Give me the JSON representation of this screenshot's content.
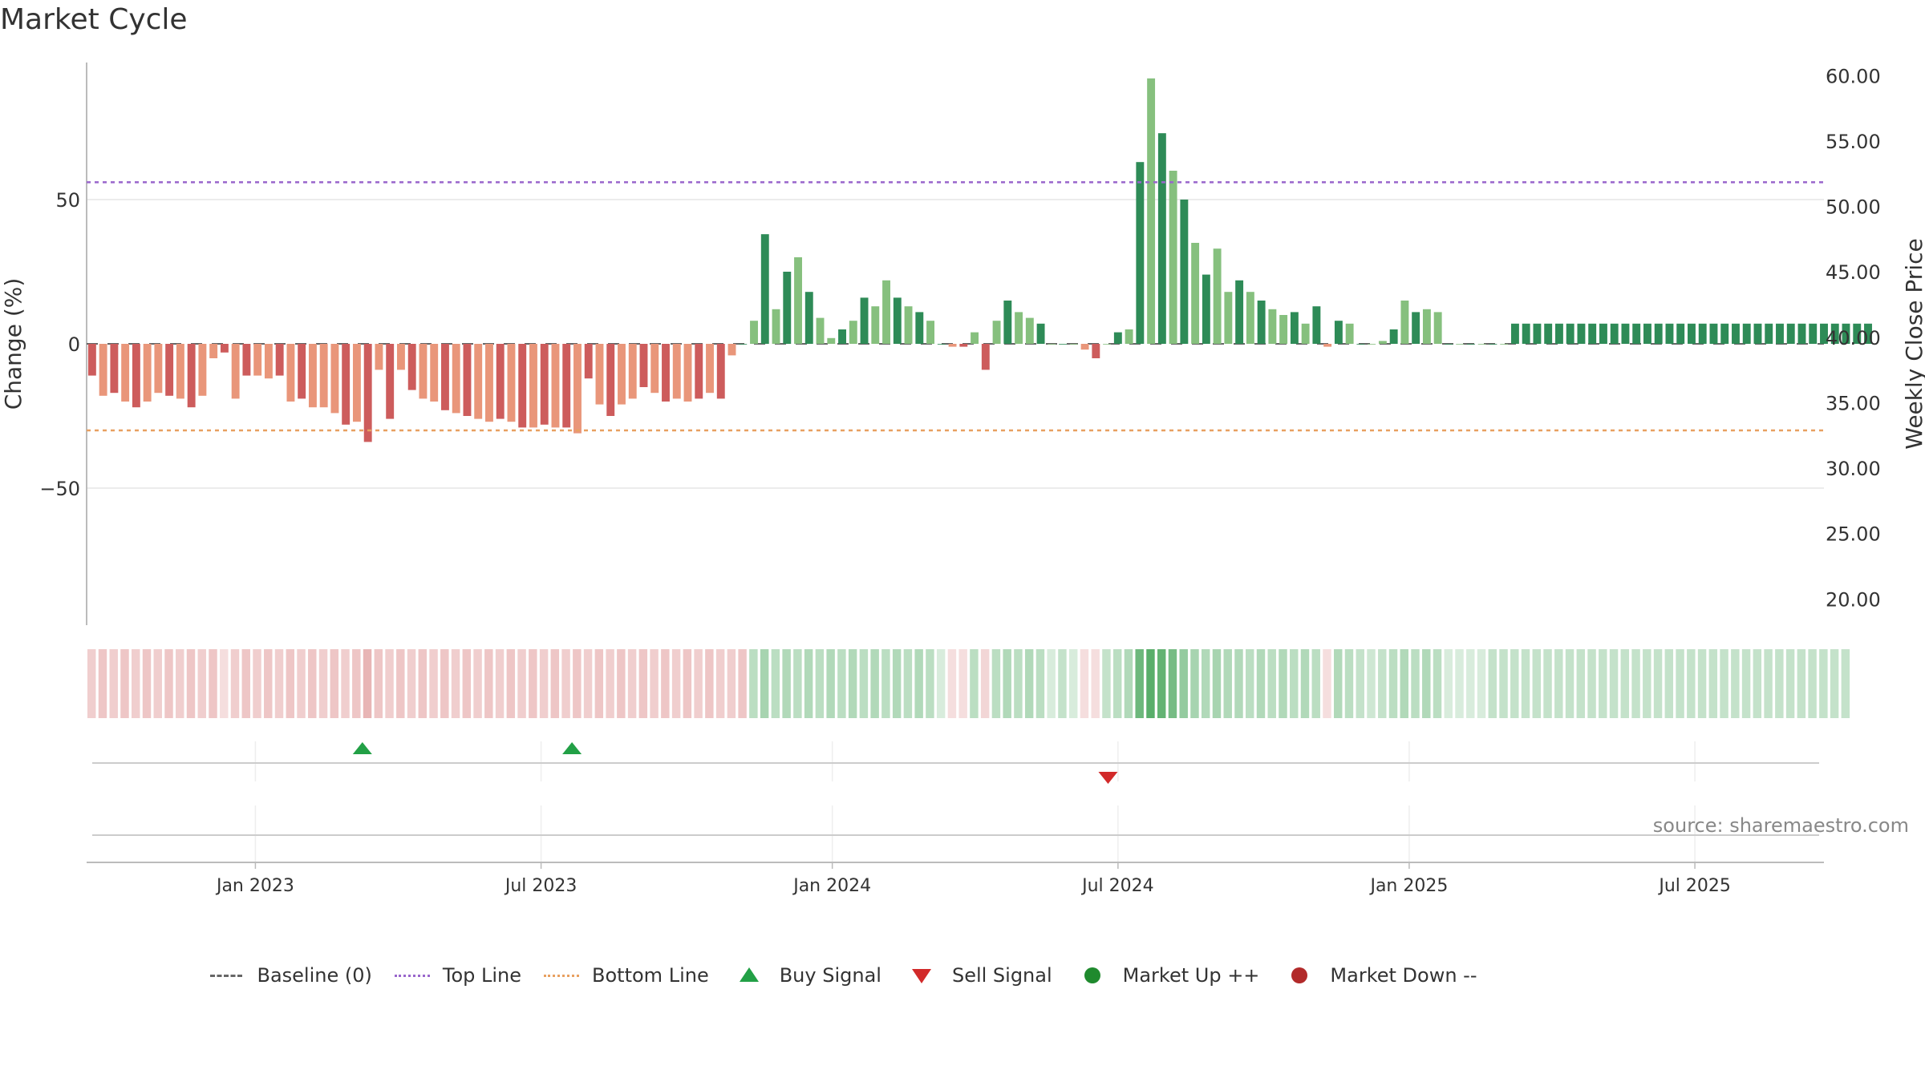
{
  "title": "Market Cycle",
  "source": "source: sharemaestro.com",
  "legend": {
    "baseline": "Baseline (0)",
    "top_line": "Top Line",
    "bottom_line": "Bottom Line",
    "buy_signal": "Buy Signal",
    "sell_signal": "Sell Signal",
    "market_up": "Market Up ++",
    "market_down": "Market Down --"
  },
  "colors": {
    "positive_dark": "#2e8b57",
    "positive_light": "#86c07e",
    "negative_dark": "#cd5c5c",
    "negative_light": "#e9967a",
    "top_line": "#9966cc",
    "bottom_line": "#e8a060",
    "buy": "#22a046",
    "sell": "#d22a2a"
  },
  "chart_data": {
    "type": "bar",
    "ylabel": "Change (%)",
    "y2label": "Weekly Close Price",
    "ylim": [
      -97.5,
      97.5
    ],
    "yticks": [
      {
        "v": 50,
        "label": "50"
      },
      {
        "v": 0,
        "label": "0"
      },
      {
        "v": -50,
        "label": "−50"
      }
    ],
    "y2lim": [
      18,
      61
    ],
    "y2ticks": [
      "60.00",
      "55.00",
      "50.00",
      "45.00",
      "40.00",
      "35.00",
      "30.00",
      "25.00",
      "20.00"
    ],
    "y2tick_values": [
      60,
      55,
      50,
      45,
      40,
      35,
      30,
      25,
      20
    ],
    "xlim_weeks": [
      0,
      157.5
    ],
    "xticks": [
      {
        "label": "Jan 2023",
        "week": 15.3
      },
      {
        "label": "Jul 2023",
        "week": 41.2
      },
      {
        "label": "Jan 2024",
        "week": 67.6
      },
      {
        "label": "Jul 2024",
        "week": 93.5
      },
      {
        "label": "Jan 2025",
        "week": 119.9
      },
      {
        "label": "Jul 2025",
        "week": 145.8
      }
    ],
    "top_line": 56,
    "bottom_line": -30,
    "grid": true,
    "legend_position": "bottom",
    "weekly_change": [
      -11,
      -18,
      -17,
      -20,
      -22,
      -20,
      -17,
      -18,
      -19,
      -22,
      -18,
      -5,
      -3,
      -19,
      -11,
      -11,
      -12,
      -11,
      -20,
      -19,
      -22,
      -22,
      -24,
      -28,
      -27,
      -34,
      -9,
      -26,
      -9,
      -16,
      -19,
      -20,
      -23,
      -24,
      -25,
      -26,
      -27,
      -26,
      -27,
      -29,
      -29,
      -28,
      -29,
      -29,
      -31,
      -12,
      -21,
      -25,
      -21,
      -19,
      -15,
      -17,
      -20,
      -19,
      -20,
      -19,
      -17,
      -19,
      -4,
      0,
      8,
      38,
      12,
      25,
      30,
      18,
      9,
      2,
      5,
      8,
      16,
      13,
      22,
      16,
      13,
      11,
      8,
      0,
      -1,
      -1,
      4,
      -9,
      8,
      15,
      11,
      9,
      7,
      0,
      0,
      0,
      -2,
      -5,
      0,
      4,
      5,
      63,
      92,
      73,
      60,
      50,
      35,
      24,
      33,
      18,
      22,
      18,
      15,
      12,
      10,
      11,
      7,
      13,
      -1,
      8,
      7,
      0,
      0,
      1,
      5,
      15,
      11,
      12,
      11,
      0,
      0,
      0,
      0,
      0,
      0,
      7,
      7,
      7,
      7,
      7,
      7,
      7,
      7,
      7,
      7,
      7,
      7,
      7,
      7,
      7,
      7,
      7,
      7,
      7,
      7,
      7,
      7,
      7,
      7,
      7,
      7,
      7,
      7,
      7,
      7,
      7,
      7,
      7
    ],
    "bar_shade": "dldldlldldlldldlldldllldldldldlldldlldldldldldldlldldlldldldldldldlldldlldldldldldldlldldlldldldldldldlldldlldldldldlldldlldldldlddddddddddddddddddddddddddddddddd",
    "regime_intensity": [
      0.3,
      0.35,
      0.3,
      0.35,
      0.3,
      0.35,
      0.3,
      0.35,
      0.3,
      0.35,
      0.3,
      0.35,
      0.2,
      0.3,
      0.35,
      0.3,
      0.35,
      0.3,
      0.35,
      0.3,
      0.35,
      0.3,
      0.35,
      0.3,
      0.35,
      0.45,
      0.35,
      0.3,
      0.35,
      0.3,
      0.35,
      0.3,
      0.35,
      0.3,
      0.35,
      0.3,
      0.35,
      0.3,
      0.35,
      0.3,
      0.35,
      0.3,
      0.35,
      0.3,
      0.35,
      0.3,
      0.35,
      0.3,
      0.35,
      0.3,
      0.35,
      0.3,
      0.35,
      0.3,
      0.35,
      0.3,
      0.35,
      0.3,
      0.3,
      0.35,
      0.35,
      0.45,
      0.35,
      0.4,
      0.35,
      0.4,
      0.35,
      0.4,
      0.35,
      0.4,
      0.35,
      0.4,
      0.35,
      0.4,
      0.35,
      0.4,
      0.35,
      0.2,
      0.2,
      0.2,
      0.35,
      0.25,
      0.35,
      0.4,
      0.35,
      0.4,
      0.35,
      0.2,
      0.3,
      0.2,
      0.2,
      0.2,
      0.3,
      0.35,
      0.4,
      0.75,
      0.85,
      0.8,
      0.7,
      0.55,
      0.45,
      0.4,
      0.45,
      0.4,
      0.4,
      0.35,
      0.4,
      0.35,
      0.4,
      0.35,
      0.4,
      0.35,
      0.2,
      0.4,
      0.35,
      0.3,
      0.25,
      0.3,
      0.35,
      0.4,
      0.35,
      0.4,
      0.35,
      0.2,
      0.2,
      0.2,
      0.2,
      0.3,
      0.3,
      0.3,
      0.3,
      0.3,
      0.3,
      0.3,
      0.3,
      0.3,
      0.3,
      0.3,
      0.3,
      0.3,
      0.3,
      0.3,
      0.3,
      0.3,
      0.3,
      0.3,
      0.3,
      0.3,
      0.3,
      0.3,
      0.3,
      0.3,
      0.3,
      0.3,
      0.3,
      0.3,
      0.3,
      0.3,
      0.3,
      0.3
    ],
    "buy_signals": [
      25,
      44
    ],
    "sell_signals": [
      92.6
    ]
  }
}
